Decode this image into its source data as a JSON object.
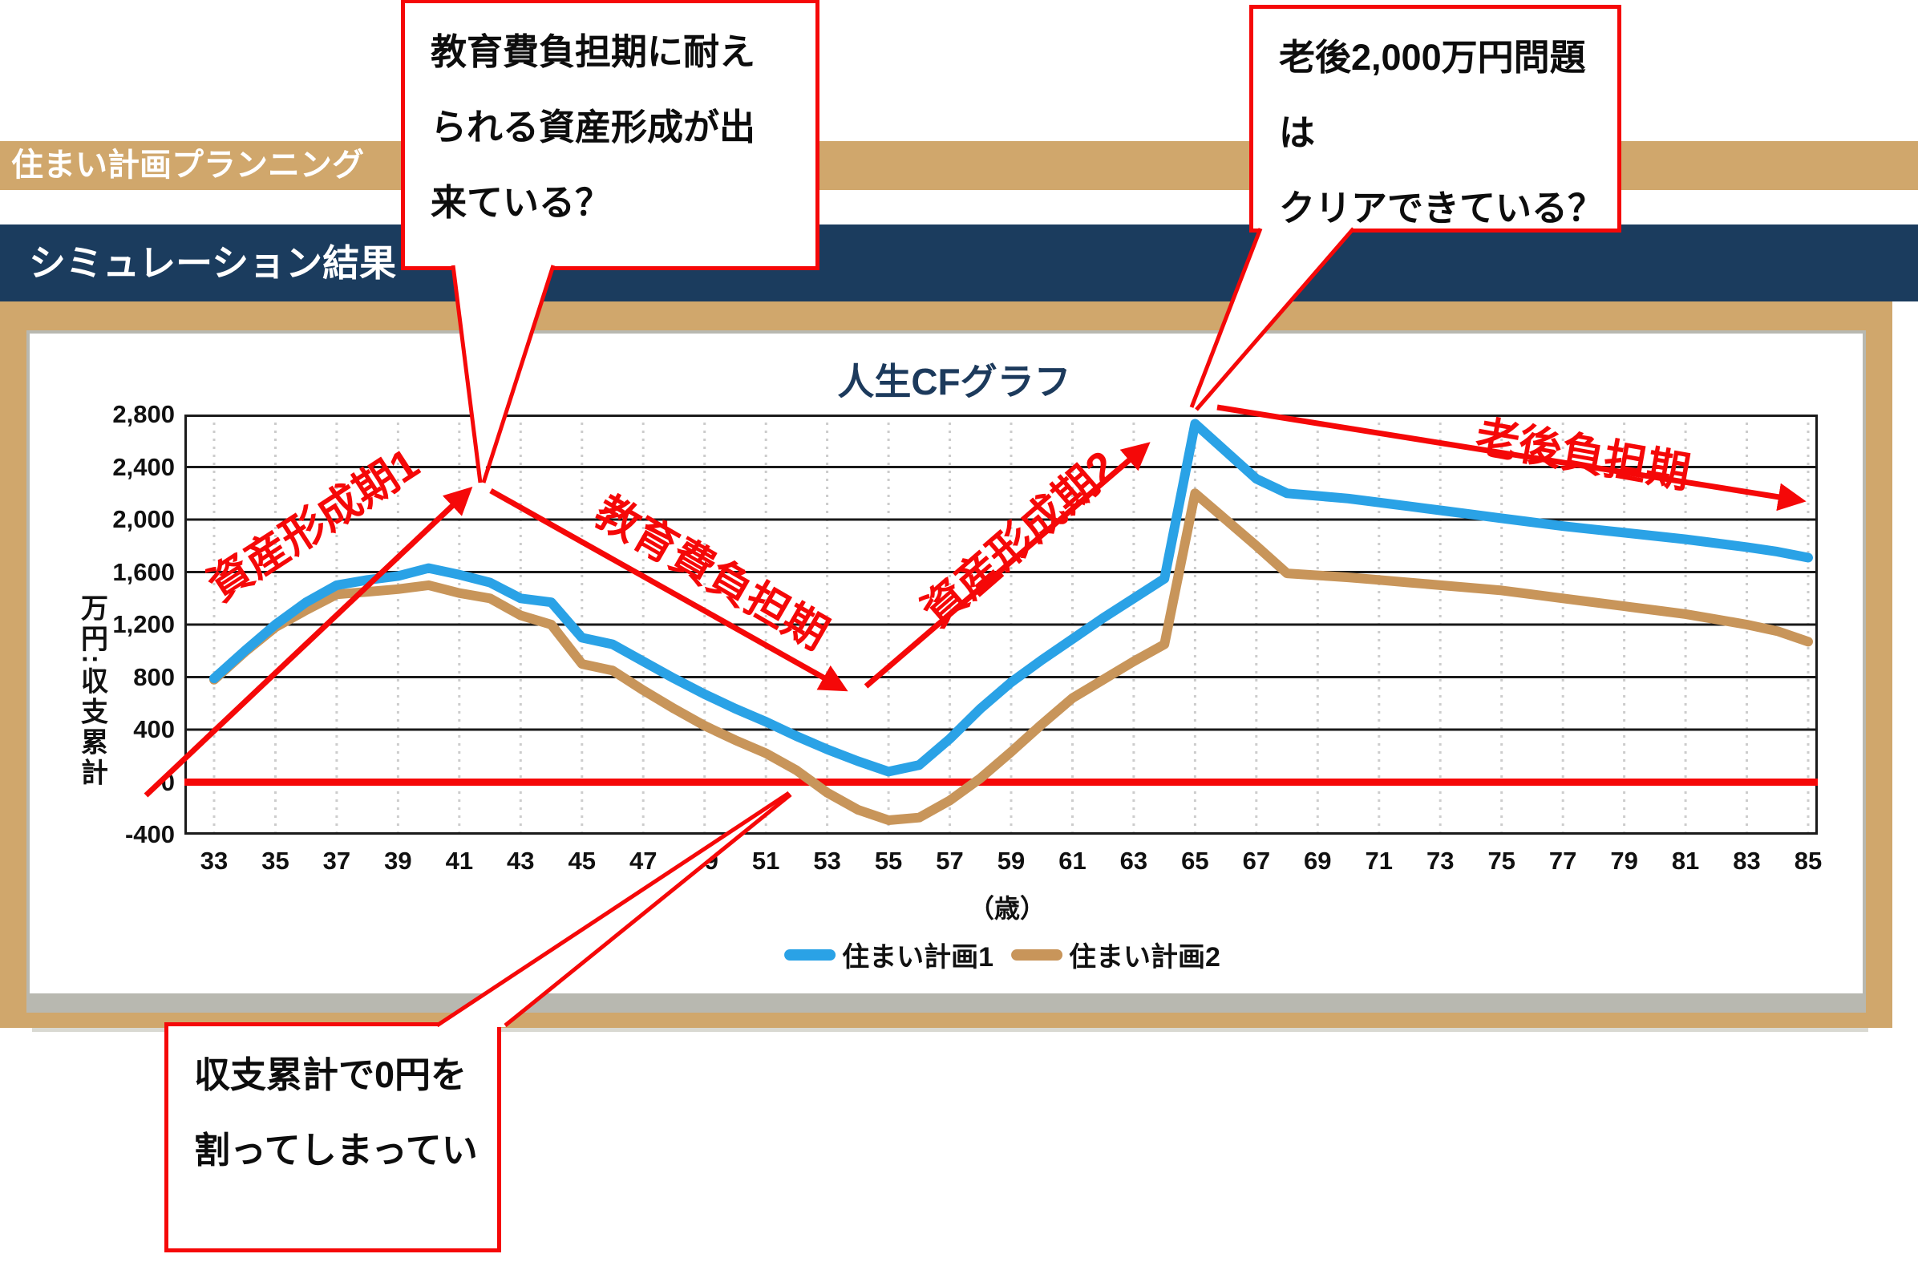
{
  "header": {
    "app_bar": "住まい計画プランニング",
    "section_bar": "シミュレーション結果"
  },
  "callouts": {
    "education": {
      "line1": "教育費負担期に耐え",
      "line2": "られる資産形成が出",
      "line3": "来ている？"
    },
    "retirement": {
      "line1": "老後2,000万円問題は",
      "line2": "クリアできている？"
    },
    "deficit": {
      "line1": "収支累計で0円を",
      "line2": "割ってしまってい"
    }
  },
  "annotations": {
    "phase1": "資産形成期1",
    "education_period": "教育費負担期",
    "phase2": "資産形成期2",
    "retirement_period": "老後負担期"
  },
  "chart_data": {
    "type": "line",
    "title": "人生CFグラフ",
    "ylabel": "万円:収支累計",
    "xlabel": "（歳）",
    "x_start": 33,
    "x_end": 85,
    "x_tick_labels": [
      "33",
      "35",
      "37",
      "39",
      "41",
      "43",
      "45",
      "47",
      "49",
      "51",
      "53",
      "55",
      "57",
      "59",
      "61",
      "63",
      "65",
      "67",
      "69",
      "71",
      "73",
      "75",
      "77",
      "79",
      "81",
      "83",
      "85"
    ],
    "ylim": [
      -400,
      2800
    ],
    "ytick_step": 400,
    "y_tick_labels": [
      "2,800",
      "2,400",
      "2,000",
      "1,600",
      "1,200",
      "800",
      "400",
      "0",
      "-400"
    ],
    "zero_line": 0,
    "grid": true,
    "legend_position": "bottom",
    "series": [
      {
        "name": "住まい計画1",
        "color": "#2aa2e6",
        "values": [
          790,
          1000,
          1200,
          1370,
          1500,
          1540,
          1570,
          1630,
          1580,
          1520,
          1400,
          1370,
          1100,
          1050,
          920,
          790,
          670,
          560,
          460,
          350,
          250,
          160,
          80,
          130,
          330,
          560,
          760,
          930,
          1090,
          1250,
          1400,
          1550,
          2730,
          2520,
          2310,
          2200,
          2180,
          2160,
          2130,
          2100,
          2070,
          2040,
          2010,
          1980,
          1950,
          1925,
          1900,
          1875,
          1850,
          1820,
          1790,
          1755,
          1710
        ]
      },
      {
        "name": "住まい計画2",
        "color": "#c8955a",
        "values": [
          780,
          990,
          1180,
          1310,
          1430,
          1450,
          1470,
          1500,
          1440,
          1400,
          1270,
          1200,
          900,
          850,
          700,
          560,
          430,
          320,
          220,
          90,
          -80,
          -210,
          -290,
          -270,
          -140,
          30,
          230,
          440,
          640,
          780,
          920,
          1050,
          2200,
          2000,
          1800,
          1590,
          1575,
          1560,
          1540,
          1520,
          1500,
          1480,
          1460,
          1430,
          1400,
          1370,
          1340,
          1310,
          1280,
          1240,
          1200,
          1150,
          1070
        ]
      }
    ]
  },
  "colors": {
    "tan": "#d0a76c",
    "navy": "#1b3c5e",
    "red": "#f50808",
    "title": "#1c3a5c",
    "grid": "#1a1a1a",
    "grid_dotted": "#cccccc",
    "shadow": "#b8b8b0"
  }
}
